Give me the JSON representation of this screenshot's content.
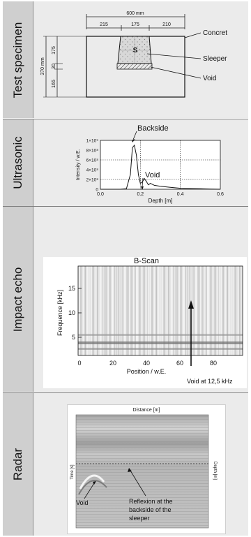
{
  "rows": [
    {
      "label": "Test specimen"
    },
    {
      "label": "Ultrasonic"
    },
    {
      "label": "Impact echo"
    },
    {
      "label": "Radar"
    }
  ],
  "specimen": {
    "width_total": "600 mm",
    "seg_left": "215",
    "seg_mid": "175",
    "seg_right": "210",
    "height_total": "370 mm",
    "h_top": "175",
    "h_mid": "30",
    "h_bot": "165",
    "sleeper_letter": "S",
    "callout_concrete": "Concret",
    "callout_sleeper": "Sleeper",
    "callout_void": "Void"
  },
  "ultrasonic": {
    "annot_backside": "Backside",
    "annot_void": "Void",
    "ylabel": "Intensity / w.E.",
    "xlabel": "Depth [m]",
    "ytick_labels": [
      "0",
      "2×10⁸",
      "4×10⁸",
      "6×10⁸",
      "8×10⁸",
      "1×10⁹"
    ],
    "xtick_labels": [
      "0.0",
      "0.2",
      "0.4",
      "0.6"
    ]
  },
  "impact_echo": {
    "title": "B-Scan",
    "ylabel": "Frequence  [kHz]",
    "xlabel": "Position / w.E.",
    "ytick_labels": [
      "5",
      "10",
      "15"
    ],
    "xtick_labels": [
      "0",
      "20",
      "40",
      "60",
      "80"
    ],
    "annot": "Void at 12,5 kHz"
  },
  "radar": {
    "top_label": "Distance  [m]",
    "left_label": "Time  [s]",
    "right_label": "Depth  [m]",
    "annot_void": "Void",
    "annot_reflexion_1": "Reflexion at the",
    "annot_reflexion_2": "backside of the",
    "annot_reflexion_3": "sleeper"
  },
  "chart_data": {
    "type": "line",
    "title": "",
    "xlabel": "Depth [m]",
    "ylabel": "Intensity / w.E.",
    "xlim": [
      0,
      0.6
    ],
    "ylim": [
      0,
      1000000000
    ],
    "grid": true,
    "x": [
      0.0,
      0.05,
      0.1,
      0.13,
      0.15,
      0.16,
      0.17,
      0.18,
      0.19,
      0.2,
      0.21,
      0.22,
      0.23,
      0.24,
      0.25,
      0.27,
      0.3,
      0.35,
      0.4,
      0.45,
      0.5,
      0.55,
      0.6
    ],
    "series": [
      {
        "values": [
          0,
          0,
          0,
          10000000,
          300000000,
          850000000,
          900000000,
          700000000,
          300000000,
          120000000,
          150000000,
          220000000,
          160000000,
          90000000,
          120000000,
          80000000,
          60000000,
          40000000,
          20000000,
          15000000,
          10000000,
          5000000,
          0
        ]
      }
    ]
  }
}
